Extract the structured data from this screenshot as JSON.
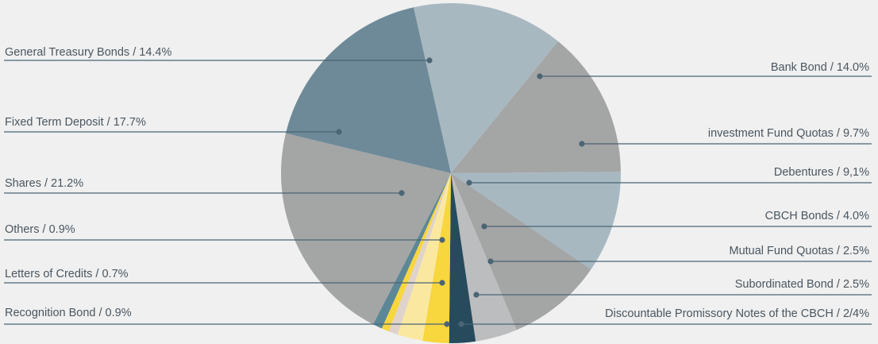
{
  "chart_data": {
    "type": "pie",
    "title": "",
    "slices": [
      {
        "label": "General Treasury Bonds / 14.4%",
        "value": 14.4,
        "color": "#a7b8c1"
      },
      {
        "label": "Bank Bond / 14.0%",
        "value": 14.0,
        "color": "#a4a5a5"
      },
      {
        "label": "investment Fund Quotas / 9.7%",
        "value": 9.7,
        "color": "#a7b8c1"
      },
      {
        "label": "Debentures / 9,1%",
        "value": 9.1,
        "color": "#a4a5a5"
      },
      {
        "label": "CBCH Bonds / 4.0%",
        "value": 4.0,
        "color": "#bcbdbf"
      },
      {
        "label": "Mutual Fund Quotas / 2.5%",
        "value": 2.5,
        "color": "#274a5c"
      },
      {
        "label": "Subordinated Bond / 2.5%",
        "value": 2.5,
        "color": "#f8d63e"
      },
      {
        "label": "Discountable Promissory Notes of the CBCH / 2/4%",
        "value": 2.4,
        "color": "#fbe8a0"
      },
      {
        "label": "Recognition Bond / 0.9%",
        "value": 0.9,
        "color": "#dfd3cb"
      },
      {
        "label": "Letters of Credits / 0.7%",
        "value": 0.7,
        "color": "#f8d63e"
      },
      {
        "label": "Others / 0.9%",
        "value": 0.9,
        "color": "#5c8796"
      },
      {
        "label": "Shares / 21.2%",
        "value": 21.2,
        "color": "#a4a5a5"
      },
      {
        "label": "Fixed Term Deposit / 17.7%",
        "value": 17.7,
        "color": "#6e8a98"
      }
    ],
    "legend": "callout lines",
    "line_color": "#4a6575"
  }
}
